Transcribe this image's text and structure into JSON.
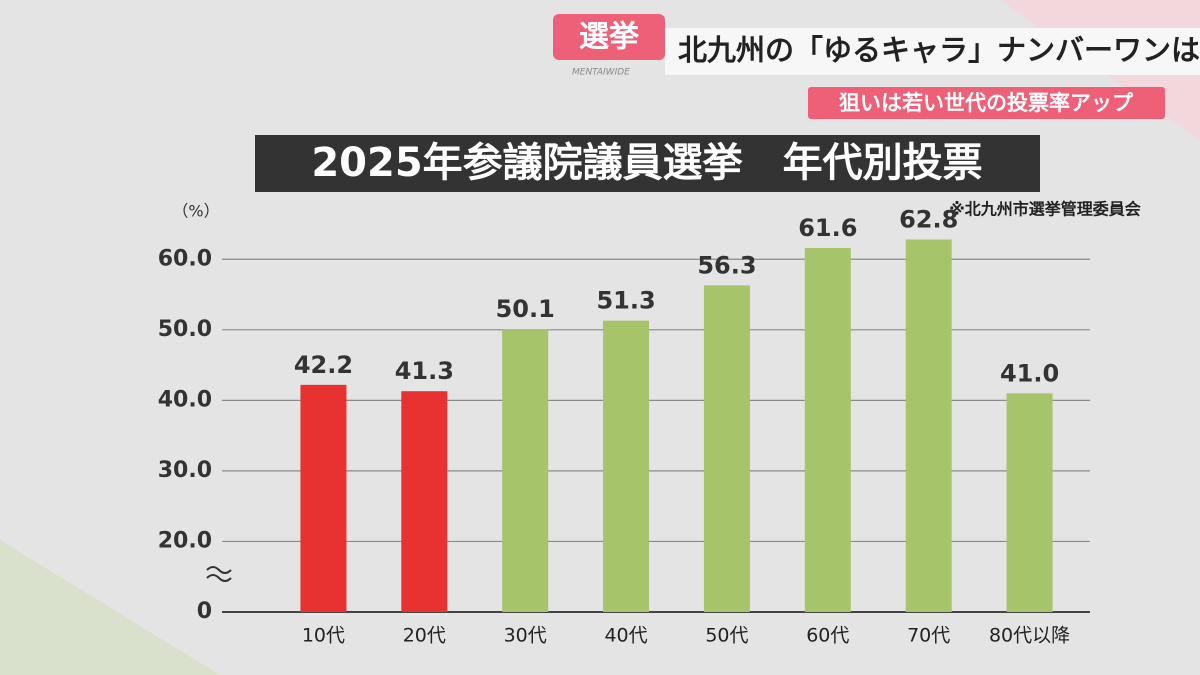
{
  "banner": {
    "tag": "選挙",
    "headline": "北九州の「ゆるキャラ」ナンバーワンは？",
    "brand": "MENTAIWIDE",
    "subtitle": "狙いは若い世代の投票率アップ"
  },
  "chart_data": {
    "type": "bar",
    "title": "2025年参議院議員選挙　年代別投票",
    "y_label": "（%）",
    "source": "※北九州市選挙管理委員会",
    "categories": [
      "10代",
      "20代",
      "30代",
      "40代",
      "50代",
      "60代",
      "70代",
      "80代以降"
    ],
    "values": [
      42.2,
      41.3,
      50.1,
      51.3,
      56.3,
      61.6,
      62.8,
      41.0
    ],
    "value_labels": [
      "42.2",
      "41.3",
      "50.1",
      "51.3",
      "56.3",
      "61.6",
      "62.8",
      "41.0"
    ],
    "colors": [
      "#e83232",
      "#e83232",
      "#a6c46a",
      "#a6c46a",
      "#a6c46a",
      "#a6c46a",
      "#a6c46a",
      "#a6c46a"
    ],
    "ylim": [
      0,
      65
    ],
    "yticks": [
      0,
      {
        "value": 20,
        "label": "20.0"
      },
      {
        "value": 30,
        "label": "30.0"
      },
      {
        "value": 40,
        "label": "40.0"
      },
      {
        "value": 50,
        "label": "50.0"
      },
      {
        "value": 60,
        "label": "60.0"
      }
    ],
    "axis_break": true,
    "grid": true
  }
}
